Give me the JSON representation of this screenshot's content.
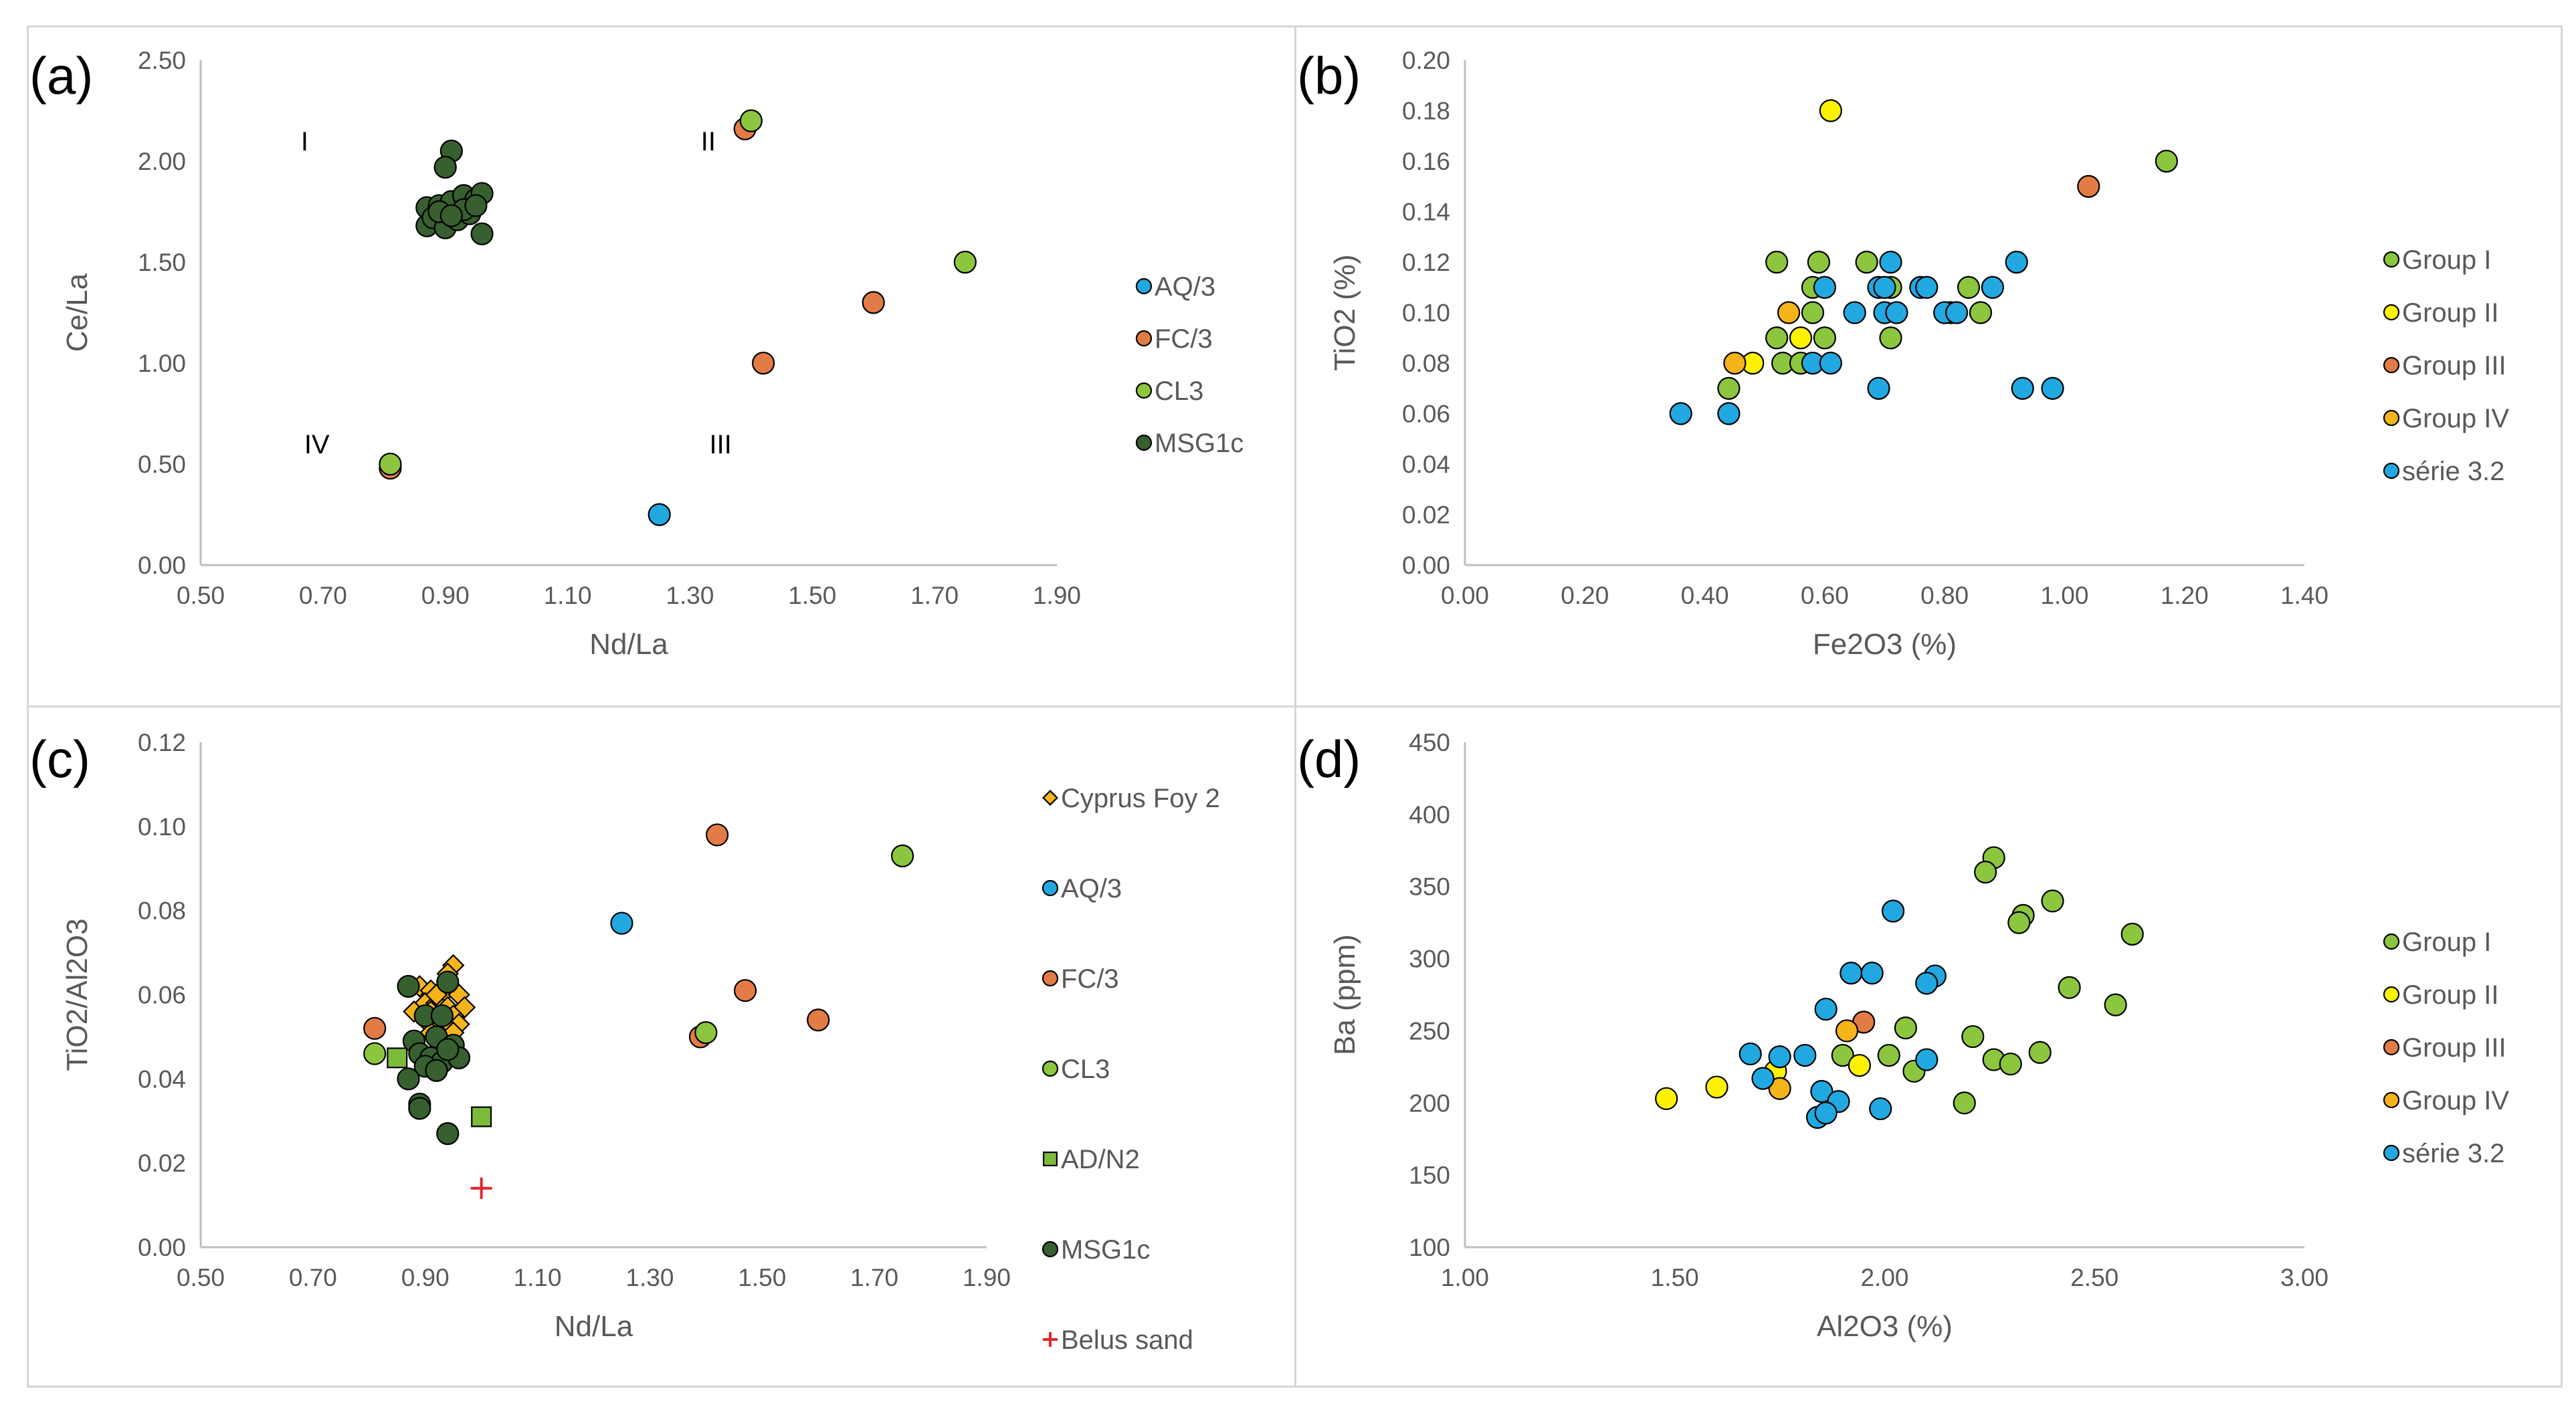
{
  "colors": {
    "blue": "#22a8e0",
    "orange": "#e27b45",
    "lightgreen": "#8cc63f",
    "darkgreen": "#375f2f",
    "yellow": "#fff200",
    "gold": "#f5b41a",
    "sandred": "#e8232b",
    "adgreen": "#7cbb3a"
  },
  "chart_data": [
    {
      "type": "scatter",
      "panel_label": "(a)",
      "xlabel": "Nd/La",
      "ylabel": "Ce/La",
      "xlim": [
        0.5,
        1.9
      ],
      "ylim": [
        0,
        2.5
      ],
      "xticks": [
        "0.50",
        "0.70",
        "0.90",
        "1.10",
        "1.30",
        "1.50",
        "1.70",
        "1.90"
      ],
      "yticks": [
        "0.00",
        "0.50",
        "1.00",
        "1.50",
        "2.00",
        "2.50"
      ],
      "annotations": [
        {
          "text": "I",
          "x": 0.67,
          "y": 2.1
        },
        {
          "text": "II",
          "x": 1.33,
          "y": 2.1
        },
        {
          "text": "III",
          "x": 1.35,
          "y": 0.6
        },
        {
          "text": "IV",
          "x": 0.69,
          "y": 0.6
        }
      ],
      "series": [
        {
          "name": "AQ/3",
          "marker": "circle",
          "color": "#22a8e0",
          "points": [
            [
              1.25,
              0.25
            ]
          ]
        },
        {
          "name": "FC/3",
          "marker": "circle",
          "color": "#e27b45",
          "points": [
            [
              0.81,
              0.48
            ],
            [
              1.39,
              2.16
            ],
            [
              1.42,
              1.0
            ],
            [
              1.6,
              1.3
            ]
          ]
        },
        {
          "name": "CL3",
          "marker": "circle",
          "color": "#8cc63f",
          "points": [
            [
              0.81,
              0.5
            ],
            [
              1.4,
              2.2
            ],
            [
              1.75,
              1.5
            ]
          ]
        },
        {
          "name": "MSG1c",
          "marker": "circle",
          "color": "#375f2f",
          "points": [
            [
              0.91,
              2.05
            ],
            [
              0.9,
              1.97
            ],
            [
              0.87,
              1.77
            ],
            [
              0.89,
              1.78
            ],
            [
              0.91,
              1.8
            ],
            [
              0.93,
              1.83
            ],
            [
              0.95,
              1.81
            ],
            [
              0.96,
              1.84
            ],
            [
              0.87,
              1.68
            ],
            [
              0.88,
              1.72
            ],
            [
              0.9,
              1.67
            ],
            [
              0.92,
              1.71
            ],
            [
              0.94,
              1.74
            ],
            [
              0.93,
              1.76
            ],
            [
              0.89,
              1.75
            ],
            [
              0.91,
              1.73
            ],
            [
              0.96,
              1.64
            ],
            [
              0.95,
              1.78
            ]
          ]
        }
      ]
    },
    {
      "type": "scatter",
      "panel_label": "(b)",
      "xlabel": "Fe2O3 (%)",
      "ylabel": "TiO2 (%)",
      "xlim": [
        0,
        1.4
      ],
      "ylim": [
        0,
        0.2
      ],
      "xticks": [
        "0.00",
        "0.20",
        "0.40",
        "0.60",
        "0.80",
        "1.00",
        "1.20",
        "1.40"
      ],
      "yticks": [
        "0.00",
        "0.02",
        "0.04",
        "0.06",
        "0.08",
        "0.10",
        "0.12",
        "0.14",
        "0.16",
        "0.18",
        "0.20"
      ],
      "annotations": [],
      "series": [
        {
          "name": "Group I",
          "marker": "circle",
          "color": "#8cc63f",
          "points": [
            [
              1.17,
              0.16
            ],
            [
              0.52,
              0.12
            ],
            [
              0.59,
              0.12
            ],
            [
              0.67,
              0.12
            ],
            [
              0.58,
              0.11
            ],
            [
              0.71,
              0.11
            ],
            [
              0.84,
              0.11
            ],
            [
              0.58,
              0.1
            ],
            [
              0.81,
              0.1
            ],
            [
              0.86,
              0.1
            ],
            [
              0.52,
              0.09
            ],
            [
              0.6,
              0.09
            ],
            [
              0.71,
              0.09
            ],
            [
              0.53,
              0.08
            ],
            [
              0.56,
              0.08
            ],
            [
              0.44,
              0.07
            ]
          ]
        },
        {
          "name": "Group II",
          "marker": "circle",
          "color": "#fff200",
          "points": [
            [
              0.61,
              0.18
            ],
            [
              0.56,
              0.09
            ],
            [
              0.48,
              0.08
            ]
          ]
        },
        {
          "name": "Group III",
          "marker": "circle",
          "color": "#e27b45",
          "points": [
            [
              1.04,
              0.15
            ]
          ]
        },
        {
          "name": "Group IV",
          "marker": "circle",
          "color": "#f5b41a",
          "points": [
            [
              0.54,
              0.1
            ],
            [
              0.45,
              0.08
            ]
          ]
        },
        {
          "name": "série 3.2",
          "marker": "circle",
          "color": "#22a8e0",
          "points": [
            [
              0.36,
              0.06
            ],
            [
              0.44,
              0.06
            ],
            [
              0.58,
              0.08
            ],
            [
              0.61,
              0.08
            ],
            [
              0.6,
              0.11
            ],
            [
              0.69,
              0.11
            ],
            [
              0.7,
              0.11
            ],
            [
              0.71,
              0.12
            ],
            [
              0.92,
              0.12
            ],
            [
              0.65,
              0.1
            ],
            [
              0.7,
              0.1
            ],
            [
              0.72,
              0.1
            ],
            [
              0.76,
              0.11
            ],
            [
              0.77,
              0.11
            ],
            [
              0.8,
              0.1
            ],
            [
              0.82,
              0.1
            ],
            [
              0.88,
              0.11
            ],
            [
              0.69,
              0.07
            ],
            [
              0.93,
              0.07
            ],
            [
              0.98,
              0.07
            ]
          ]
        }
      ]
    },
    {
      "type": "scatter",
      "panel_label": "(c)",
      "xlabel": "Nd/La",
      "ylabel": "TiO2/Al2O3",
      "xlim": [
        0.5,
        1.9
      ],
      "ylim": [
        0,
        0.12
      ],
      "xticks": [
        "0.50",
        "0.70",
        "0.90",
        "1.10",
        "1.30",
        "1.50",
        "1.70",
        "1.90"
      ],
      "yticks": [
        "0.00",
        "0.02",
        "0.04",
        "0.06",
        "0.08",
        "0.10",
        "0.12"
      ],
      "annotations": [],
      "series": [
        {
          "name": "Cyprus Foy 2",
          "marker": "diamond",
          "color": "#f5b41a",
          "points": [
            [
              0.95,
              0.067
            ],
            [
              0.94,
              0.065
            ],
            [
              0.89,
              0.062
            ],
            [
              0.91,
              0.061
            ],
            [
              0.93,
              0.06
            ],
            [
              0.96,
              0.06
            ],
            [
              0.9,
              0.058
            ],
            [
              0.92,
              0.058
            ],
            [
              0.94,
              0.057
            ],
            [
              0.97,
              0.057
            ],
            [
              0.91,
              0.056
            ],
            [
              0.93,
              0.055
            ],
            [
              0.95,
              0.055
            ],
            [
              0.9,
              0.054
            ],
            [
              0.92,
              0.053
            ],
            [
              0.96,
              0.053
            ],
            [
              0.94,
              0.052
            ],
            [
              0.91,
              0.051
            ],
            [
              0.93,
              0.05
            ],
            [
              0.95,
              0.051
            ],
            [
              0.92,
              0.06
            ],
            [
              0.88,
              0.056
            ]
          ]
        },
        {
          "name": "AQ/3",
          "marker": "circle",
          "color": "#22a8e0",
          "points": [
            [
              1.25,
              0.077
            ]
          ]
        },
        {
          "name": "FC/3",
          "marker": "circle",
          "color": "#e27b45",
          "points": [
            [
              1.42,
              0.098
            ],
            [
              1.47,
              0.061
            ],
            [
              1.6,
              0.054
            ],
            [
              1.39,
              0.05
            ],
            [
              0.81,
              0.052
            ]
          ]
        },
        {
          "name": "CL3",
          "marker": "circle",
          "color": "#8cc63f",
          "points": [
            [
              1.75,
              0.093
            ],
            [
              1.4,
              0.051
            ],
            [
              0.81,
              0.046
            ]
          ]
        },
        {
          "name": "AD/N2",
          "marker": "square",
          "color": "#7cbb3a",
          "points": [
            [
              0.85,
              0.045
            ],
            [
              1.0,
              0.031
            ]
          ]
        },
        {
          "name": "MSG1c",
          "marker": "circle",
          "color": "#375f2f",
          "points": [
            [
              0.87,
              0.062
            ],
            [
              0.94,
              0.063
            ],
            [
              0.9,
              0.055
            ],
            [
              0.93,
              0.055
            ],
            [
              0.88,
              0.049
            ],
            [
              0.92,
              0.05
            ],
            [
              0.95,
              0.048
            ],
            [
              0.89,
              0.046
            ],
            [
              0.91,
              0.045
            ],
            [
              0.93,
              0.044
            ],
            [
              0.96,
              0.045
            ],
            [
              0.9,
              0.043
            ],
            [
              0.92,
              0.042
            ],
            [
              0.87,
              0.04
            ],
            [
              0.89,
              0.034
            ],
            [
              0.89,
              0.033
            ],
            [
              0.94,
              0.027
            ],
            [
              0.94,
              0.047
            ]
          ]
        },
        {
          "name": "Belus sand",
          "marker": "plus",
          "color": "#e8232b",
          "points": [
            [
              1.0,
              0.014
            ]
          ]
        }
      ]
    },
    {
      "type": "scatter",
      "panel_label": "(d)",
      "xlabel": "Al2O3 (%)",
      "ylabel": "Ba (ppm)",
      "xlim": [
        1.0,
        3.0
      ],
      "ylim": [
        100,
        450
      ],
      "xticks": [
        "1.00",
        "1.50",
        "2.00",
        "2.50",
        "3.00"
      ],
      "yticks": [
        "100",
        "150",
        "200",
        "250",
        "300",
        "350",
        "400",
        "450"
      ],
      "annotations": [],
      "series": [
        {
          "name": "Group I",
          "marker": "circle",
          "color": "#8cc63f",
          "points": [
            [
              2.26,
              370
            ],
            [
              2.24,
              360
            ],
            [
              2.4,
              340
            ],
            [
              2.33,
              330
            ],
            [
              2.32,
              325
            ],
            [
              2.59,
              317
            ],
            [
              2.44,
              280
            ],
            [
              2.55,
              268
            ],
            [
              2.05,
              252
            ],
            [
              2.21,
              246
            ],
            [
              1.9,
              233
            ],
            [
              2.01,
              233
            ],
            [
              2.26,
              230
            ],
            [
              2.3,
              227
            ],
            [
              2.37,
              235
            ],
            [
              2.07,
              222
            ],
            [
              2.19,
              200
            ]
          ]
        },
        {
          "name": "Group II",
          "marker": "circle",
          "color": "#fff200",
          "points": [
            [
              1.48,
              203
            ],
            [
              1.6,
              211
            ],
            [
              1.74,
              222
            ],
            [
              1.94,
              226
            ]
          ]
        },
        {
          "name": "Group III",
          "marker": "circle",
          "color": "#e27b45",
          "points": [
            [
              1.95,
              256
            ]
          ]
        },
        {
          "name": "Group IV",
          "marker": "circle",
          "color": "#f5b41a",
          "points": [
            [
              1.91,
              250
            ],
            [
              1.75,
              210
            ]
          ]
        },
        {
          "name": "série 3.2",
          "marker": "circle",
          "color": "#22a8e0",
          "points": [
            [
              2.02,
              333
            ],
            [
              1.92,
              290
            ],
            [
              1.97,
              290
            ],
            [
              2.12,
              288
            ],
            [
              2.1,
              283
            ],
            [
              1.86,
              265
            ],
            [
              1.68,
              234
            ],
            [
              1.75,
              232
            ],
            [
              1.81,
              233
            ],
            [
              2.1,
              230
            ],
            [
              1.71,
              217
            ],
            [
              1.85,
              208
            ],
            [
              1.89,
              201
            ],
            [
              1.99,
              196
            ],
            [
              1.84,
              190
            ],
            [
              1.86,
              193
            ]
          ]
        }
      ]
    }
  ]
}
